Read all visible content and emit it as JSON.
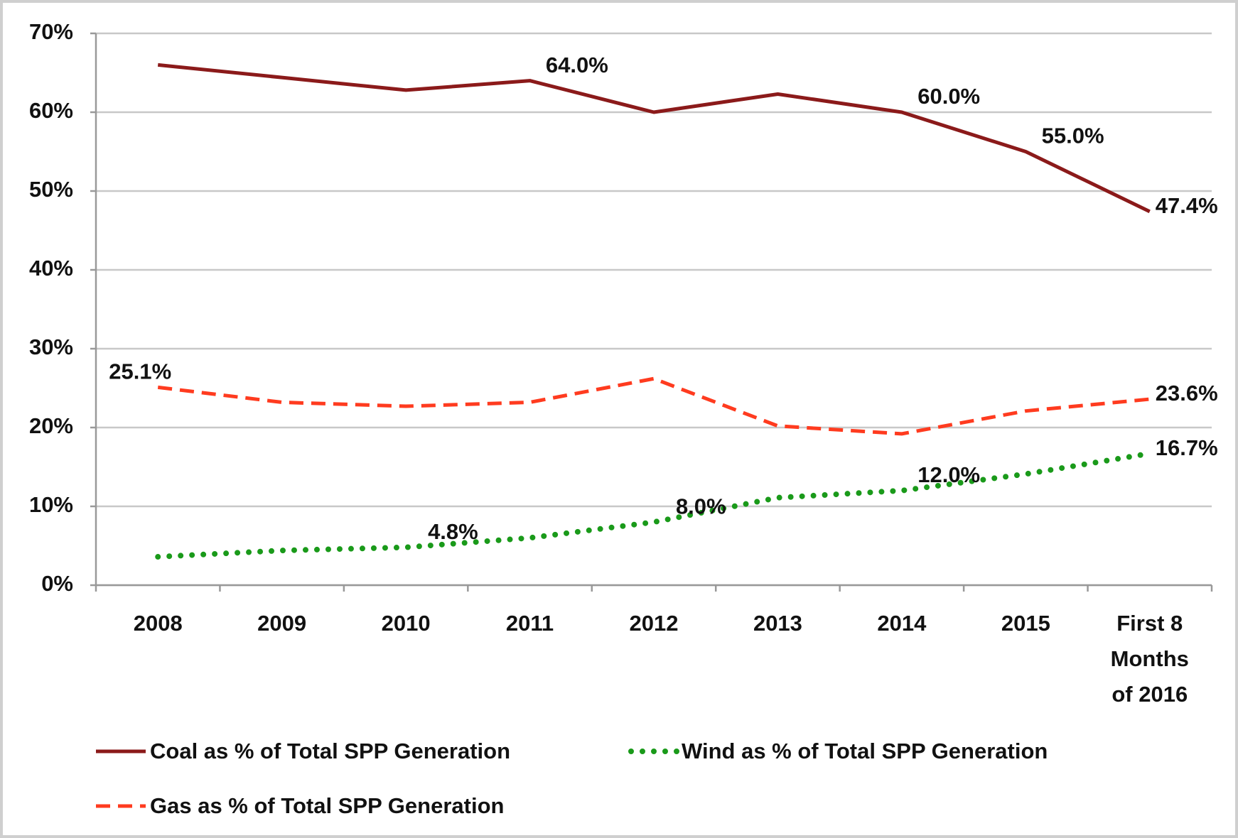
{
  "chart_data": {
    "type": "line",
    "categories": [
      "2008",
      "2009",
      "2010",
      "2011",
      "2012",
      "2013",
      "2014",
      "2015",
      "First 8 Months of 2016"
    ],
    "series": [
      {
        "name": "Coal as % of Total SPP Generation",
        "color": "#8b1a1a",
        "line_style": "solid",
        "values": [
          66.0,
          64.4,
          62.8,
          64.0,
          60.0,
          62.3,
          60.0,
          55.0,
          47.4
        ],
        "value_labels": [
          null,
          null,
          null,
          "64.0%",
          null,
          null,
          "60.0%",
          "55.0%",
          "47.4%"
        ]
      },
      {
        "name": "Wind as % of Total SPP Generation",
        "color": "#1a9a1a",
        "line_style": "dotted",
        "values": [
          3.6,
          4.4,
          4.8,
          6.0,
          8.0,
          11.1,
          12.0,
          14.1,
          16.7
        ],
        "value_labels": [
          null,
          null,
          "4.8%",
          null,
          "8.0%",
          null,
          "12.0%",
          null,
          "16.7%"
        ]
      },
      {
        "name": "Gas as % of Total SPP Generation",
        "color": "#ff3b1f",
        "line_style": "dashed",
        "values": [
          25.1,
          23.2,
          22.7,
          23.2,
          26.2,
          20.2,
          19.2,
          22.1,
          23.6
        ],
        "value_labels": [
          "25.1%",
          null,
          null,
          null,
          null,
          null,
          null,
          null,
          "23.6%"
        ]
      }
    ],
    "ylim": [
      0,
      70
    ],
    "yticks": [
      {
        "value": 0,
        "label": "0%"
      },
      {
        "value": 10,
        "label": "10%"
      },
      {
        "value": 20,
        "label": "20%"
      },
      {
        "value": 30,
        "label": "30%"
      },
      {
        "value": 40,
        "label": "40%"
      },
      {
        "value": 50,
        "label": "50%"
      },
      {
        "value": 60,
        "label": "60%"
      },
      {
        "value": 70,
        "label": "70%"
      }
    ],
    "grid": true
  }
}
